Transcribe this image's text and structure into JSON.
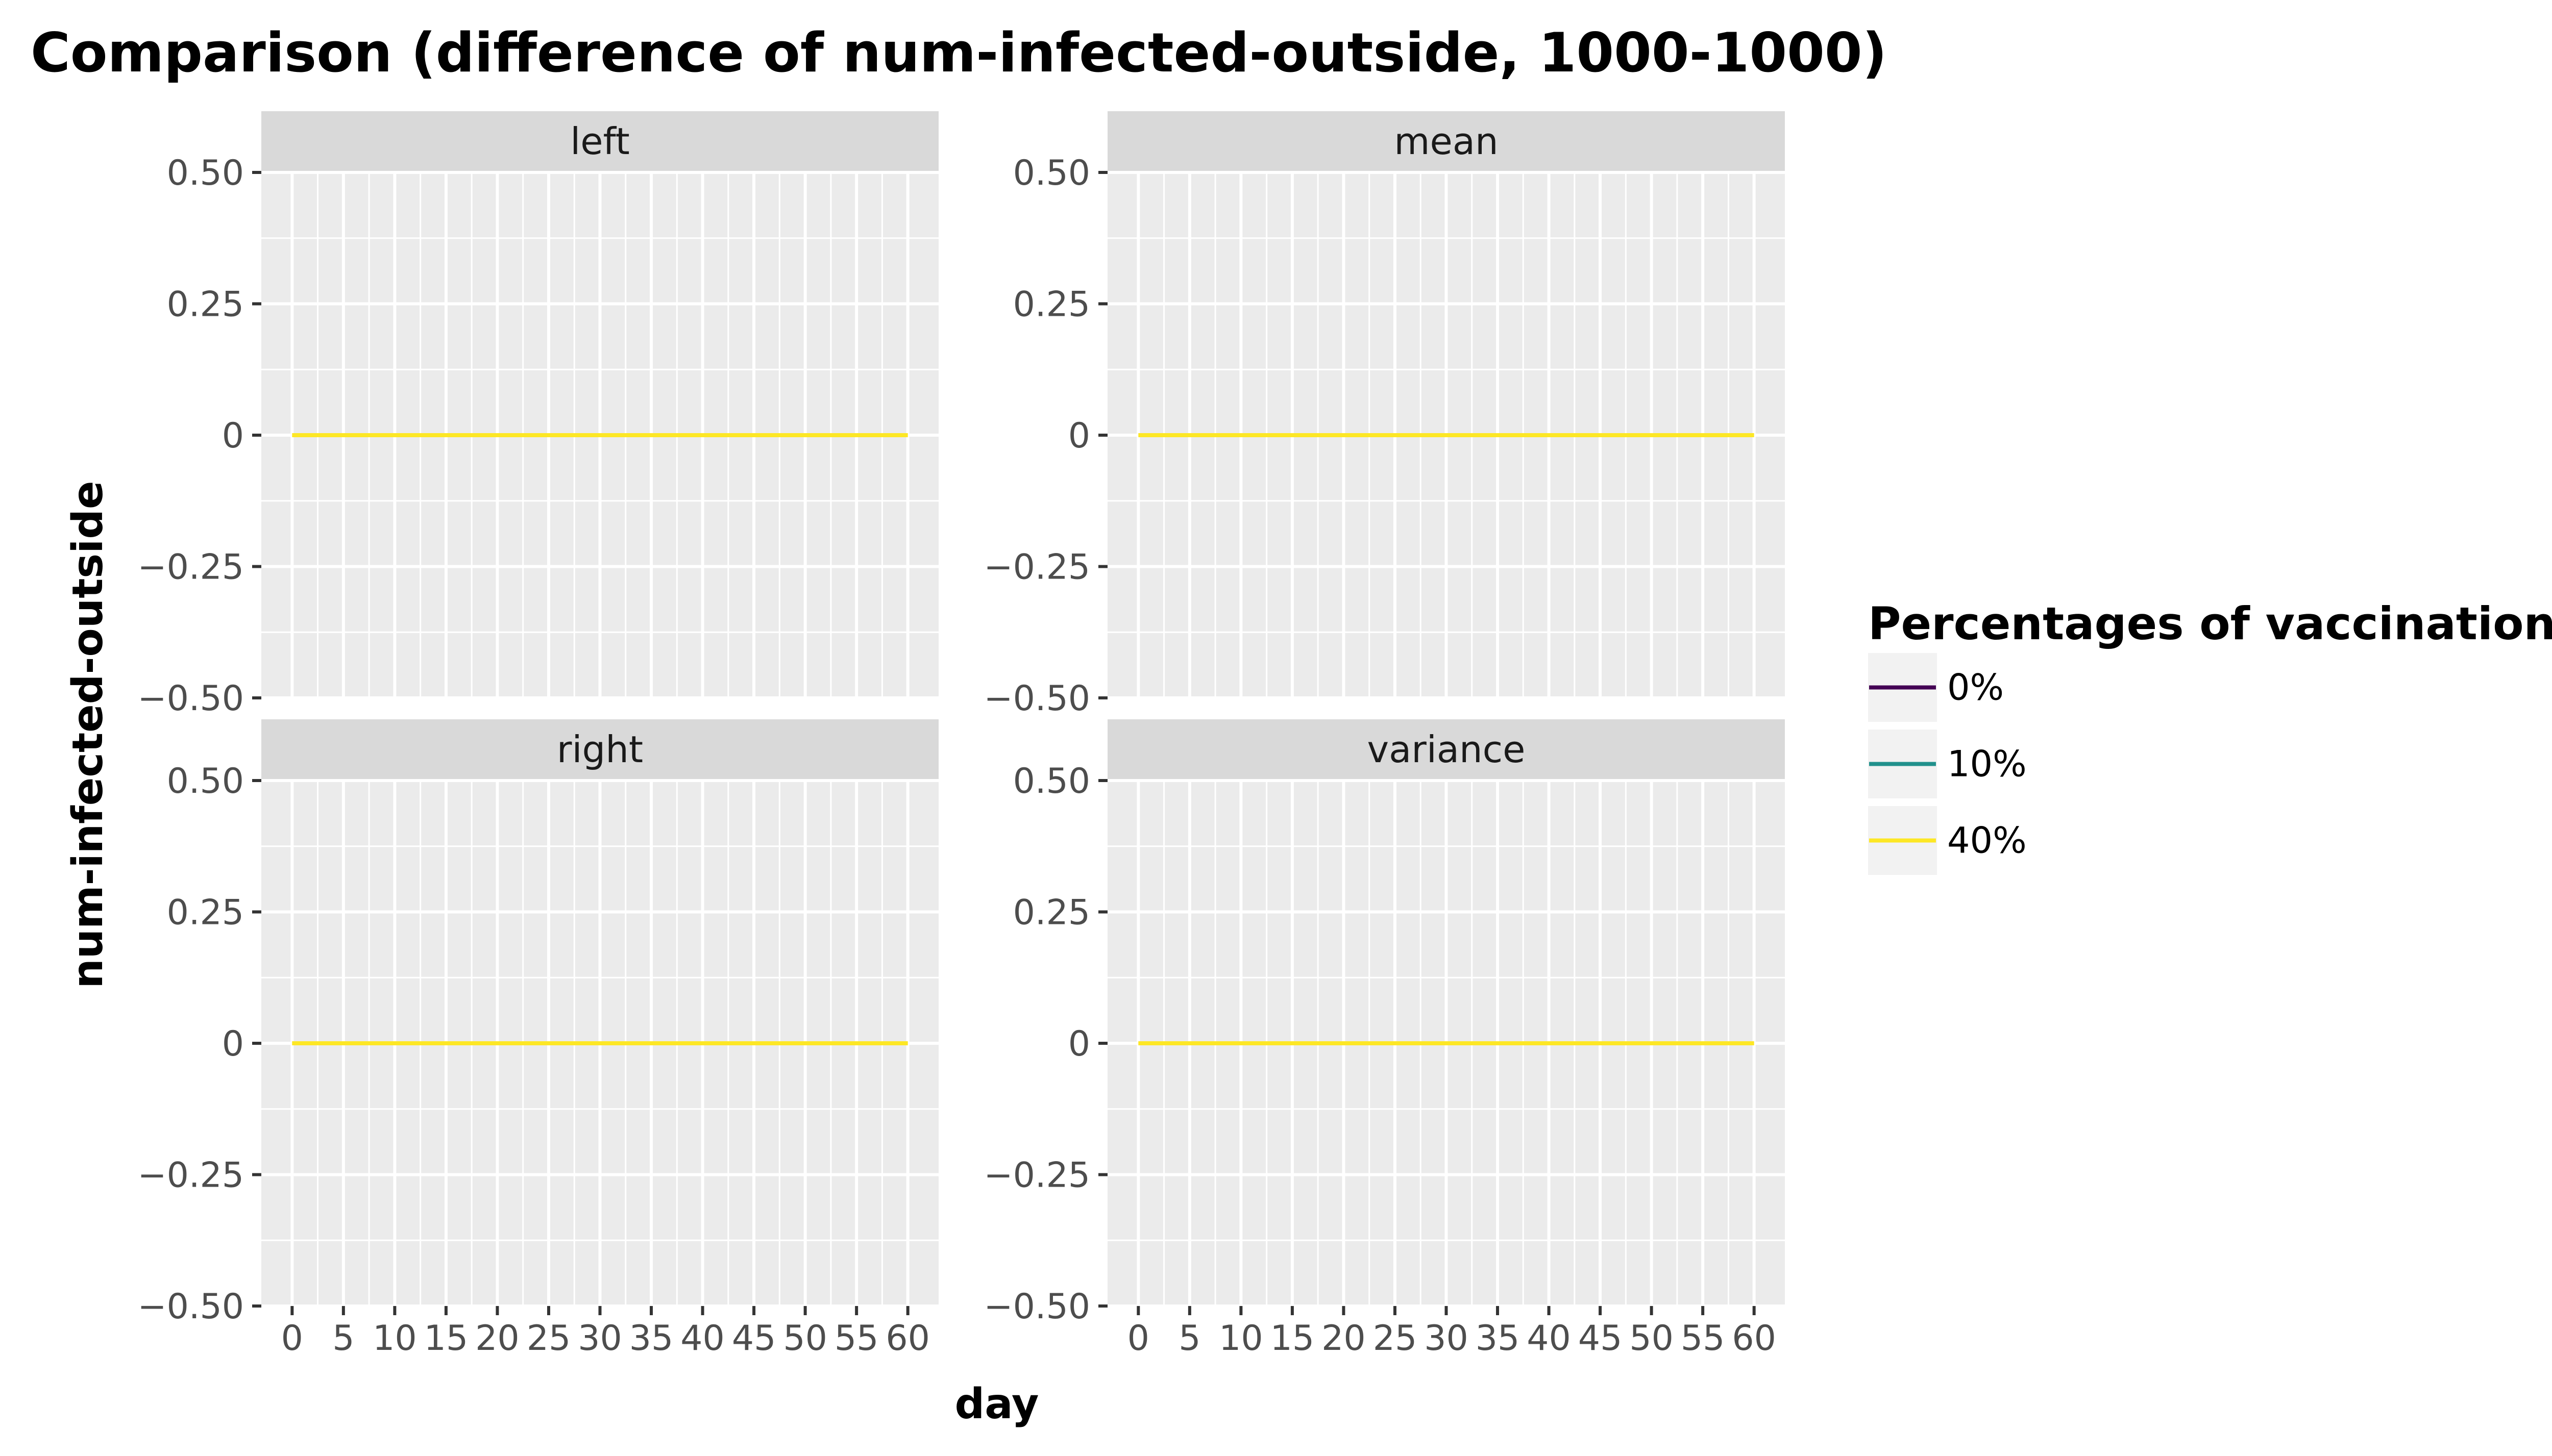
{
  "chart_data": {
    "type": "line",
    "title": "Comparison (difference of num-infected-outside, 1000-1000)",
    "xlabel": "day",
    "ylabel": "num-infected-outside",
    "xlim": [
      -3,
      63
    ],
    "ylim": [
      -0.5,
      0.5
    ],
    "x_ticks": [
      0,
      5,
      10,
      15,
      20,
      25,
      30,
      35,
      40,
      45,
      50,
      55,
      60
    ],
    "x_tick_labels": [
      "0",
      "5",
      "10",
      "15",
      "20",
      "25",
      "30",
      "35",
      "40",
      "45",
      "50",
      "55",
      "60"
    ],
    "y_ticks": [
      0.5,
      0.25,
      0,
      -0.25,
      -0.5
    ],
    "y_tick_labels": [
      "0.50",
      "0.25",
      "0",
      "−0.25",
      "−0.50"
    ],
    "grid": true,
    "legend": {
      "title": "Percentages of vaccination",
      "placement": "right",
      "entries": [
        {
          "label": "0%",
          "color": "#440154"
        },
        {
          "label": "10%",
          "color": "#21918c"
        },
        {
          "label": "40%",
          "color": "#fde725"
        }
      ]
    },
    "panels": [
      {
        "strip": "left",
        "series": [
          {
            "name": "40%",
            "color": "#fde725",
            "x": [
              0,
              60
            ],
            "y": [
              0,
              0
            ]
          }
        ]
      },
      {
        "strip": "mean",
        "series": [
          {
            "name": "40%",
            "color": "#fde725",
            "x": [
              0,
              60
            ],
            "y": [
              0,
              0
            ]
          }
        ]
      },
      {
        "strip": "right",
        "series": [
          {
            "name": "40%",
            "color": "#fde725",
            "x": [
              0,
              60
            ],
            "y": [
              0,
              0
            ]
          }
        ]
      },
      {
        "strip": "variance",
        "series": [
          {
            "name": "40%",
            "color": "#fde725",
            "x": [
              0,
              60
            ],
            "y": [
              0,
              0
            ]
          }
        ]
      }
    ]
  }
}
